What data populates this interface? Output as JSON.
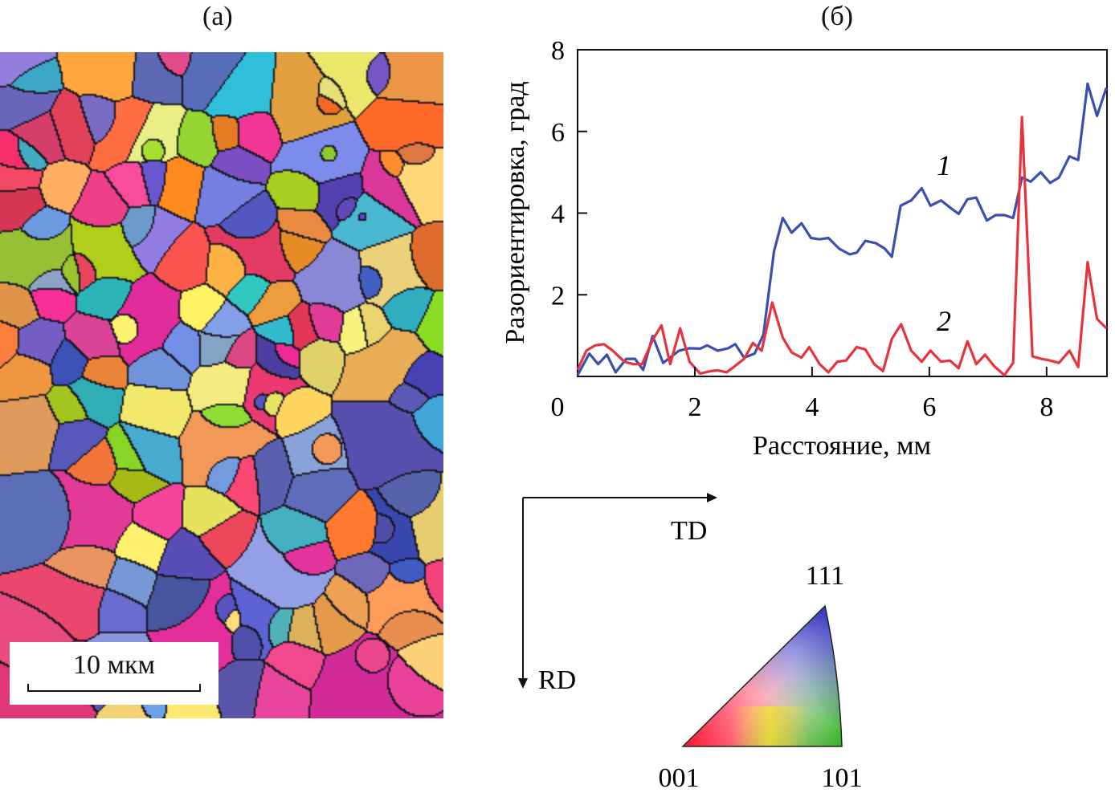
{
  "panels": {
    "a_label": "(а)",
    "b_label": "(б)"
  },
  "map": {
    "scale_bar_label": "10 мкм",
    "description_colors": [
      "#e63c8c",
      "#4b4fb0",
      "#6a5ac0",
      "#f0a050",
      "#9ccc2a",
      "#3cb8c8",
      "#f07a30",
      "#e84060",
      "#f4e070",
      "#8090d8"
    ]
  },
  "axes_legend": {
    "td_label": "TD",
    "rd_label": "RD"
  },
  "ipf": {
    "corner_111": "111",
    "corner_001": "001",
    "corner_101": "101",
    "colors": {
      "001": "#ff0000",
      "101": "#00c000",
      "111": "#2020ff",
      "center": "#ffffff"
    }
  },
  "chart_data": {
    "type": "line",
    "xlabel": "Расстояние, мм",
    "ylabel": "Разориентировка, град",
    "xlim": [
      0,
      9.03
    ],
    "ylim": [
      0,
      8
    ],
    "xticks": [
      "0",
      "2",
      "4",
      "6",
      "8"
    ],
    "yticks": [
      "2",
      "4",
      "6",
      "8"
    ],
    "grid": false,
    "series": [
      {
        "name": "1",
        "color": "#3a4fb0",
        "x": [
          0,
          0.2,
          0.35,
          0.5,
          0.65,
          0.83,
          0.98,
          1.12,
          1.28,
          1.46,
          1.73,
          1.9,
          2.09,
          2.21,
          2.39,
          2.57,
          2.69,
          2.84,
          3.02,
          3.17,
          3.35,
          3.5,
          3.65,
          3.82,
          3.98,
          4.13,
          4.28,
          4.46,
          4.64,
          4.76,
          4.91,
          5.09,
          5.24,
          5.36,
          5.51,
          5.69,
          5.87,
          6.02,
          6.2,
          6.35,
          6.5,
          6.65,
          6.8,
          6.98,
          7.13,
          7.28,
          7.43,
          7.58,
          7.73,
          7.9,
          8.06,
          8.21,
          8.39,
          8.54,
          8.7,
          8.86,
          9.02
        ],
        "y": [
          0.03,
          0.56,
          0.3,
          0.53,
          0.1,
          0.43,
          0.43,
          0.16,
          0.99,
          0.33,
          0.63,
          0.69,
          0.68,
          0.76,
          0.63,
          0.69,
          0.79,
          0.46,
          0.56,
          1.02,
          3.06,
          3.88,
          3.52,
          3.75,
          3.39,
          3.36,
          3.39,
          3.13,
          2.99,
          3.03,
          3.32,
          3.26,
          3.13,
          2.93,
          4.18,
          4.31,
          4.61,
          4.18,
          4.31,
          4.14,
          3.98,
          4.34,
          4.38,
          3.82,
          3.95,
          3.95,
          3.88,
          4.87,
          4.77,
          5.0,
          4.74,
          4.87,
          5.39,
          5.3,
          7.17,
          6.38,
          7.07
        ]
      },
      {
        "name": "2",
        "color": "#e8323c",
        "x": [
          0,
          0.15,
          0.3,
          0.45,
          0.6,
          0.8,
          0.95,
          1.1,
          1.28,
          1.43,
          1.58,
          1.75,
          1.91,
          2.09,
          2.27,
          2.39,
          2.54,
          2.69,
          2.84,
          2.99,
          3.14,
          3.32,
          3.5,
          3.65,
          3.82,
          3.95,
          4.13,
          4.28,
          4.43,
          4.58,
          4.76,
          4.91,
          5.06,
          5.21,
          5.36,
          5.52,
          5.69,
          5.87,
          6.02,
          6.2,
          6.35,
          6.5,
          6.65,
          6.8,
          6.95,
          7.1,
          7.28,
          7.43,
          7.58,
          7.76,
          7.91,
          8.06,
          8.21,
          8.39,
          8.54,
          8.7,
          8.86,
          9.02
        ],
        "y": [
          0.16,
          0.63,
          0.76,
          0.79,
          0.63,
          0.36,
          0.3,
          0.3,
          0.89,
          1.25,
          0.3,
          1.18,
          0.36,
          0.07,
          0.13,
          0.15,
          0.1,
          0.26,
          0.43,
          0.82,
          0.63,
          1.81,
          0.95,
          0.59,
          0.46,
          0.72,
          0.3,
          0.1,
          0.36,
          0.39,
          0.72,
          0.66,
          0.3,
          0.13,
          0.92,
          1.28,
          0.63,
          0.36,
          0.63,
          0.36,
          0.39,
          0.2,
          0.86,
          0.3,
          0.53,
          0.26,
          0.03,
          0.33,
          6.35,
          0.49,
          0.43,
          0.39,
          0.33,
          0.63,
          0.23,
          2.8,
          1.41,
          1.18
        ]
      }
    ]
  }
}
